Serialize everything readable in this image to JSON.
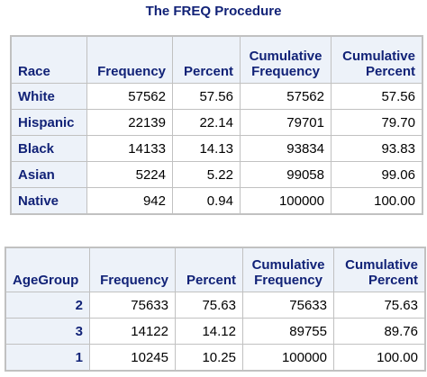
{
  "title": "The FREQ Procedure",
  "tables": [
    {
      "headers": {
        "var": "Race",
        "freq": "Frequency",
        "pct": "Percent",
        "cumfreq_1": "Cumulative",
        "cumfreq_2": "Frequency",
        "cumpct_1": "Cumulative",
        "cumpct_2": "Percent"
      },
      "rows": [
        {
          "label": "White",
          "freq": "57562",
          "pct": "57.56",
          "cumfreq": "57562",
          "cumpct": "57.56"
        },
        {
          "label": "Hispanic",
          "freq": "22139",
          "pct": "22.14",
          "cumfreq": "79701",
          "cumpct": "79.70"
        },
        {
          "label": "Black",
          "freq": "14133",
          "pct": "14.13",
          "cumfreq": "93834",
          "cumpct": "93.83"
        },
        {
          "label": "Asian",
          "freq": "5224",
          "pct": "5.22",
          "cumfreq": "99058",
          "cumpct": "99.06"
        },
        {
          "label": "Native",
          "freq": "942",
          "pct": "0.94",
          "cumfreq": "100000",
          "cumpct": "100.00"
        }
      ]
    },
    {
      "headers": {
        "var": "AgeGroup",
        "freq": "Frequency",
        "pct": "Percent",
        "cumfreq_1": "Cumulative",
        "cumfreq_2": "Frequency",
        "cumpct_1": "Cumulative",
        "cumpct_2": "Percent"
      },
      "rows": [
        {
          "label": "2",
          "freq": "75633",
          "pct": "75.63",
          "cumfreq": "75633",
          "cumpct": "75.63"
        },
        {
          "label": "3",
          "freq": "14122",
          "pct": "14.12",
          "cumfreq": "89755",
          "cumpct": "89.76"
        },
        {
          "label": "1",
          "freq": "10245",
          "pct": "10.25",
          "cumfreq": "100000",
          "cumpct": "100.00"
        }
      ]
    }
  ]
}
